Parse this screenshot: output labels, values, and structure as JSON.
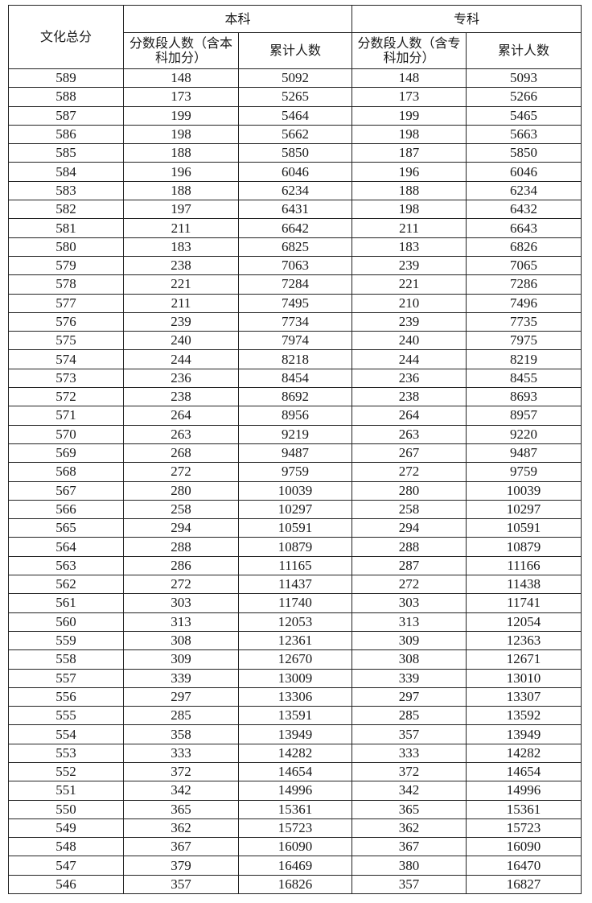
{
  "header": {
    "score": "文化总分",
    "undergrad": "本科",
    "junior": "专科",
    "undergrad_count": "分数段人数（含本科加分）",
    "junior_count": "分数段人数（含专科加分）",
    "cumulative": "累计人数"
  },
  "rows": [
    [
      "589",
      "148",
      "5092",
      "148",
      "5093"
    ],
    [
      "588",
      "173",
      "5265",
      "173",
      "5266"
    ],
    [
      "587",
      "199",
      "5464",
      "199",
      "5465"
    ],
    [
      "586",
      "198",
      "5662",
      "198",
      "5663"
    ],
    [
      "585",
      "188",
      "5850",
      "187",
      "5850"
    ],
    [
      "584",
      "196",
      "6046",
      "196",
      "6046"
    ],
    [
      "583",
      "188",
      "6234",
      "188",
      "6234"
    ],
    [
      "582",
      "197",
      "6431",
      "198",
      "6432"
    ],
    [
      "581",
      "211",
      "6642",
      "211",
      "6643"
    ],
    [
      "580",
      "183",
      "6825",
      "183",
      "6826"
    ],
    [
      "579",
      "238",
      "7063",
      "239",
      "7065"
    ],
    [
      "578",
      "221",
      "7284",
      "221",
      "7286"
    ],
    [
      "577",
      "211",
      "7495",
      "210",
      "7496"
    ],
    [
      "576",
      "239",
      "7734",
      "239",
      "7735"
    ],
    [
      "575",
      "240",
      "7974",
      "240",
      "7975"
    ],
    [
      "574",
      "244",
      "8218",
      "244",
      "8219"
    ],
    [
      "573",
      "236",
      "8454",
      "236",
      "8455"
    ],
    [
      "572",
      "238",
      "8692",
      "238",
      "8693"
    ],
    [
      "571",
      "264",
      "8956",
      "264",
      "8957"
    ],
    [
      "570",
      "263",
      "9219",
      "263",
      "9220"
    ],
    [
      "569",
      "268",
      "9487",
      "267",
      "9487"
    ],
    [
      "568",
      "272",
      "9759",
      "272",
      "9759"
    ],
    [
      "567",
      "280",
      "10039",
      "280",
      "10039"
    ],
    [
      "566",
      "258",
      "10297",
      "258",
      "10297"
    ],
    [
      "565",
      "294",
      "10591",
      "294",
      "10591"
    ],
    [
      "564",
      "288",
      "10879",
      "288",
      "10879"
    ],
    [
      "563",
      "286",
      "11165",
      "287",
      "11166"
    ],
    [
      "562",
      "272",
      "11437",
      "272",
      "11438"
    ],
    [
      "561",
      "303",
      "11740",
      "303",
      "11741"
    ],
    [
      "560",
      "313",
      "12053",
      "313",
      "12054"
    ],
    [
      "559",
      "308",
      "12361",
      "309",
      "12363"
    ],
    [
      "558",
      "309",
      "12670",
      "308",
      "12671"
    ],
    [
      "557",
      "339",
      "13009",
      "339",
      "13010"
    ],
    [
      "556",
      "297",
      "13306",
      "297",
      "13307"
    ],
    [
      "555",
      "285",
      "13591",
      "285",
      "13592"
    ],
    [
      "554",
      "358",
      "13949",
      "357",
      "13949"
    ],
    [
      "553",
      "333",
      "14282",
      "333",
      "14282"
    ],
    [
      "552",
      "372",
      "14654",
      "372",
      "14654"
    ],
    [
      "551",
      "342",
      "14996",
      "342",
      "14996"
    ],
    [
      "550",
      "365",
      "15361",
      "365",
      "15361"
    ],
    [
      "549",
      "362",
      "15723",
      "362",
      "15723"
    ],
    [
      "548",
      "367",
      "16090",
      "367",
      "16090"
    ],
    [
      "547",
      "379",
      "16469",
      "380",
      "16470"
    ],
    [
      "546",
      "357",
      "16826",
      "357",
      "16827"
    ]
  ]
}
